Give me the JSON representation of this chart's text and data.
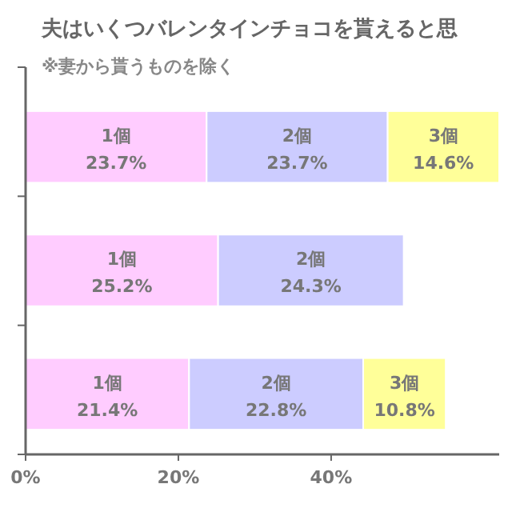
{
  "chart_data": {
    "type": "bar",
    "orientation": "horizontal",
    "stacked": true,
    "title": "夫はいくつバレンタインチョコを貰えると思",
    "subtitle": "※妻から貰うものを除く",
    "categories": [
      null,
      null,
      null
    ],
    "series": [
      {
        "name": "1個",
        "color": "#ffccff",
        "values": [
          23.7,
          25.2,
          21.4
        ],
        "value_labels": [
          "23.7%",
          "25.2%",
          "21.4%"
        ]
      },
      {
        "name": "2個",
        "color": "#ccccff",
        "values": [
          23.7,
          24.3,
          22.8
        ],
        "value_labels": [
          "23.7%",
          "24.3%",
          "22.8%"
        ]
      },
      {
        "name": "3個",
        "color": "#ffff99",
        "values": [
          14.6,
          null,
          10.8
        ],
        "value_labels": [
          "14.6%",
          null,
          "10.8%"
        ]
      }
    ],
    "xlim": [
      0,
      62
    ],
    "xticks": [
      {
        "value": 0,
        "label": "0%"
      },
      {
        "value": 20,
        "label": "20%"
      },
      {
        "value": 40,
        "label": "40%"
      }
    ]
  }
}
